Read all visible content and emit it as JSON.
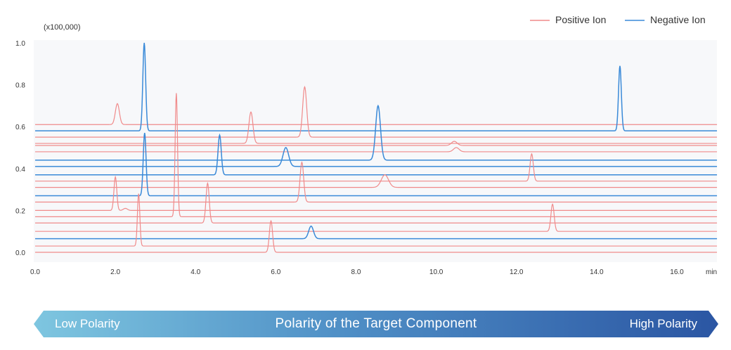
{
  "chart_data": {
    "type": "line",
    "y_unit_label": "(x100,000)",
    "x_unit_label": "min",
    "x_range": [
      0,
      17
    ],
    "y_range": [
      -0.05,
      1.0
    ],
    "x_ticks": [
      "0.0",
      "2.0",
      "4.0",
      "6.0",
      "8.0",
      "10.0",
      "12.0",
      "14.0",
      "16.0"
    ],
    "y_ticks": [
      "1.0",
      "0.8",
      "0.6",
      "0.4",
      "0.2",
      "0.0"
    ],
    "grid": false,
    "legend_position": "top-right",
    "colors": {
      "positive": "#f08a8a",
      "negative": "#3a8ad8"
    },
    "legend": [
      {
        "key": "positive",
        "label": "Positive Ion"
      },
      {
        "key": "negative",
        "label": "Negative Ion"
      }
    ],
    "traces": [
      {
        "ion": "positive",
        "baseline": 0.61,
        "peaks": [
          [
            2.05,
            0.1,
            0.05
          ]
        ]
      },
      {
        "ion": "negative",
        "baseline": 0.58,
        "peaks": [
          [
            2.72,
            0.42,
            0.035
          ],
          [
            14.58,
            0.31,
            0.035
          ]
        ]
      },
      {
        "ion": "positive",
        "baseline": 0.55,
        "peaks": [
          [
            6.72,
            0.24,
            0.05
          ]
        ]
      },
      {
        "ion": "positive",
        "baseline": 0.52,
        "peaks": [
          [
            5.38,
            0.15,
            0.05
          ]
        ]
      },
      {
        "ion": "positive",
        "baseline": 0.51,
        "peaks": [
          [
            10.45,
            0.02,
            0.07
          ]
        ]
      },
      {
        "ion": "positive",
        "baseline": 0.48,
        "peaks": [
          [
            10.5,
            0.02,
            0.07
          ]
        ]
      },
      {
        "ion": "negative",
        "baseline": 0.44,
        "peaks": [
          [
            8.55,
            0.26,
            0.06
          ]
        ]
      },
      {
        "ion": "negative",
        "baseline": 0.41,
        "peaks": [
          [
            6.25,
            0.09,
            0.07
          ]
        ]
      },
      {
        "ion": "negative",
        "baseline": 0.37,
        "peaks": [
          [
            4.6,
            0.19,
            0.04
          ]
        ]
      },
      {
        "ion": "positive",
        "baseline": 0.34,
        "peaks": [
          [
            12.38,
            0.13,
            0.04
          ]
        ]
      },
      {
        "ion": "positive",
        "baseline": 0.31,
        "peaks": [
          [
            8.72,
            0.06,
            0.09
          ]
        ]
      },
      {
        "ion": "negative",
        "baseline": 0.27,
        "peaks": [
          [
            2.73,
            0.3,
            0.035
          ]
        ]
      },
      {
        "ion": "positive",
        "baseline": 0.24,
        "peaks": [
          [
            6.65,
            0.19,
            0.045
          ]
        ]
      },
      {
        "ion": "positive",
        "baseline": 0.2,
        "peaks": [
          [
            2.0,
            0.16,
            0.035
          ],
          [
            2.25,
            0.01,
            0.05
          ]
        ]
      },
      {
        "ion": "positive",
        "baseline": 0.17,
        "peaks": [
          [
            3.52,
            0.59,
            0.03
          ]
        ]
      },
      {
        "ion": "positive",
        "baseline": 0.14,
        "peaks": [
          [
            4.3,
            0.19,
            0.04
          ]
        ]
      },
      {
        "ion": "positive",
        "baseline": 0.1,
        "peaks": [
          [
            12.9,
            0.13,
            0.04
          ]
        ]
      },
      {
        "ion": "negative",
        "baseline": 0.065,
        "peaks": [
          [
            6.88,
            0.06,
            0.06
          ]
        ]
      },
      {
        "ion": "positive",
        "baseline": 0.03,
        "peaks": [
          [
            2.58,
            0.25,
            0.03
          ]
        ]
      },
      {
        "ion": "positive",
        "baseline": 0.0,
        "peaks": [
          [
            5.88,
            0.15,
            0.04
          ]
        ]
      }
    ]
  },
  "polarity_bar": {
    "low_label": "Low Polarity",
    "center_label": "Polarity of the Target Component",
    "high_label": "High Polarity",
    "color_start": "#7ec6e0",
    "color_end": "#2b56a3"
  }
}
